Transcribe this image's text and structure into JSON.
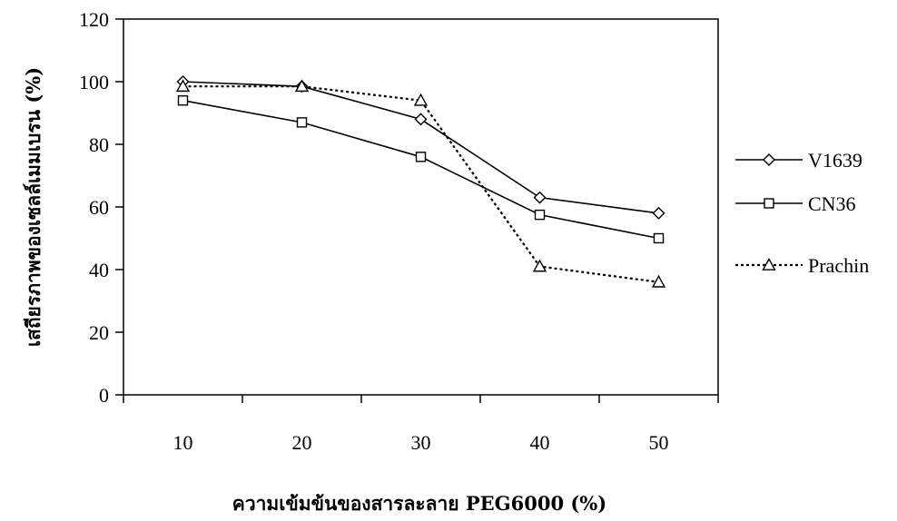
{
  "chart_data": {
    "type": "line",
    "title": "",
    "xlabel": "ความเข้มข้นของสารละลาย PEG6000 (%)",
    "ylabel": "เสถียรภาพของเซลล์เมมเบรน (%)",
    "categories": [
      "10",
      "20",
      "30",
      "40",
      "50"
    ],
    "ylim": [
      0,
      120
    ],
    "yticks": [
      "0",
      "20",
      "40",
      "60",
      "80",
      "100",
      "120"
    ],
    "grid": false,
    "legend_position": "right",
    "series": [
      {
        "name": "V1639",
        "values": [
          100,
          98.5,
          88,
          63,
          58
        ],
        "marker": "diamond",
        "line": "solid",
        "color": "#000000"
      },
      {
        "name": "CN36",
        "values": [
          94,
          87,
          76,
          57.5,
          50
        ],
        "marker": "square",
        "line": "solid",
        "color": "#000000"
      },
      {
        "name": "Prachin",
        "values": [
          98.5,
          98.5,
          94,
          41,
          36
        ],
        "marker": "triangle",
        "line": "dotted",
        "color": "#000000"
      }
    ]
  }
}
